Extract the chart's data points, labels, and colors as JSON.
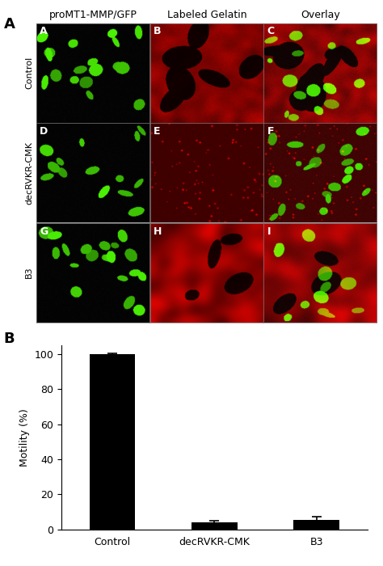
{
  "panel_A_label": "A",
  "panel_B_label": "B",
  "col_headers": [
    "proMT1-MMP/GFP",
    "Labeled Gelatin",
    "Overlay"
  ],
  "row_labels": [
    "Control",
    "decRVKR-CMK",
    "B3"
  ],
  "cell_labels": [
    "A",
    "B",
    "C",
    "D",
    "E",
    "F",
    "G",
    "H",
    "I"
  ],
  "bar_categories": [
    "Control",
    "decRVKR-CMK",
    "B3"
  ],
  "bar_values": [
    100.0,
    4.0,
    5.5
  ],
  "bar_errors": [
    0.5,
    0.8,
    1.5
  ],
  "bar_color": "#000000",
  "ylabel": "Motility (%)",
  "yticks": [
    0,
    20,
    40,
    60,
    80,
    100
  ],
  "ylim": [
    0,
    105
  ],
  "background_color": "#ffffff",
  "header_fontsize": 9,
  "row_label_fontsize": 8,
  "cell_label_fontsize": 9,
  "bar_fontsize": 9,
  "ylabel_fontsize": 9
}
